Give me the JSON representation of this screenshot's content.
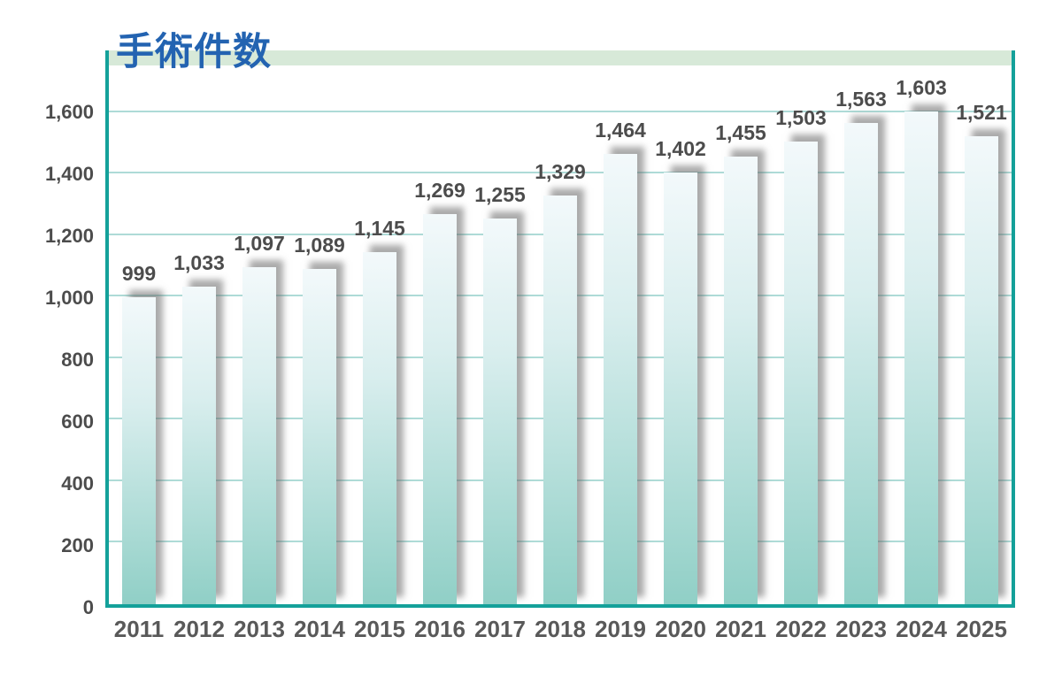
{
  "title": "手術件数",
  "colors": {
    "title_blue": "#2363b1",
    "band_green": "#d7e9d8",
    "axis_teal": "#14a19a",
    "gridline_teal": "#aedbd7",
    "bar_gradient_top": "#f3f9fb",
    "bar_gradient_bottom": "#90cfc6",
    "value_label_gray": "#4c4c4c",
    "year_label_gray": "#595959"
  },
  "chart_data": {
    "type": "bar",
    "title": "手術件数",
    "categories": [
      "2011",
      "2012",
      "2013",
      "2014",
      "2015",
      "2016",
      "2017",
      "2018",
      "2019",
      "2020",
      "2021",
      "2022",
      "2023",
      "2024",
      "2025"
    ],
    "values": [
      999,
      1033,
      1097,
      1089,
      1145,
      1269,
      1255,
      1329,
      1464,
      1402,
      1455,
      1503,
      1563,
      1603,
      1521
    ],
    "value_labels": [
      "999",
      "1,033",
      "1,097",
      "1,089",
      "1,145",
      "1,269",
      "1,255",
      "1,329",
      "1,464",
      "1,402",
      "1,455",
      "1,503",
      "1,563",
      "1,603",
      "1,521"
    ],
    "xlabel": "",
    "ylabel": "",
    "ylim": [
      0,
      1800
    ],
    "ytick_interval": 200,
    "yticks": [
      0,
      200,
      400,
      600,
      800,
      1000,
      1200,
      1400,
      1600
    ],
    "ytick_labels": [
      "0",
      "200",
      "400",
      "600",
      "800",
      "1,000",
      "1,200",
      "1,400",
      "1,600"
    ],
    "grid": true,
    "legend": "none",
    "bar_style": "vertical gradient white to seafoam, gray outer shadow offset up-right"
  }
}
